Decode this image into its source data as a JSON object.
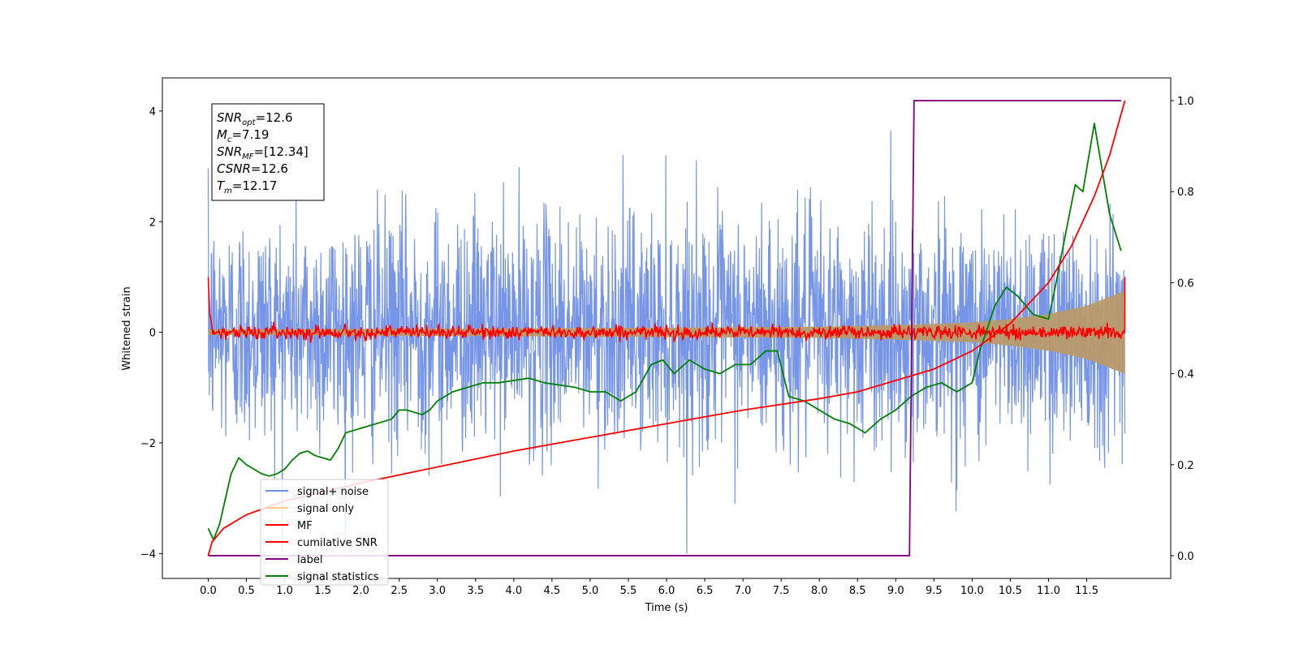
{
  "chart_data": {
    "type": "line",
    "title": "",
    "xlabel": "Time (s)",
    "ylabel": "Whitened strain",
    "xlim": [
      -0.6,
      12.6
    ],
    "ylim": [
      -4.45,
      4.6
    ],
    "y2lim": [
      -0.05,
      1.05
    ],
    "x_ticks": [
      "0.0",
      "0.5",
      "1.0",
      "1.5",
      "2.0",
      "2.5",
      "3.0",
      "3.5",
      "4.0",
      "4.5",
      "5.0",
      "5.5",
      "6.0",
      "6.5",
      "7.0",
      "7.5",
      "8.0",
      "8.5",
      "9.0",
      "9.5",
      "10.0",
      "10.5",
      "11.0",
      "11.5"
    ],
    "y_ticks": [
      "−4",
      "−2",
      "0",
      "2",
      "4"
    ],
    "y2_ticks": [
      "0.0",
      "0.2",
      "0.4",
      "0.6",
      "0.8",
      "1.0"
    ],
    "legend_position": "lower-left",
    "colors": {
      "noise": "#6f8fe6",
      "signal": "#fdbf6f",
      "mf": "#ff0000",
      "csnr": "#ff0000",
      "label": "#800080",
      "stats": "#008000"
    },
    "legend": [
      {
        "key": "noise",
        "label": "signal+ noise"
      },
      {
        "key": "signal",
        "label": "signal only"
      },
      {
        "key": "mf",
        "label": "MF"
      },
      {
        "key": "csnr",
        "label": "cumilative SNR"
      },
      {
        "key": "label",
        "label": "label"
      },
      {
        "key": "stats",
        "label": "signal statistics"
      }
    ],
    "annotation": [
      {
        "var": "SNR",
        "sub": "opt",
        "rest": "=12.6"
      },
      {
        "var": "M",
        "sub": "c",
        "rest": "=7.19"
      },
      {
        "var": "SNR",
        "sub": "MF",
        "rest": "=[12.34]"
      },
      {
        "var": "CSNR",
        "sub": "",
        "rest": "=12.6"
      },
      {
        "var": "T",
        "sub": "m",
        "rest": "=12.17"
      }
    ],
    "series": [
      {
        "name": "signal+ noise",
        "key": "noise",
        "axis": "left",
        "description_range": [
          -4.0,
          4.15
        ],
        "x_range": [
          0.0,
          12.0
        ]
      },
      {
        "name": "signal only",
        "key": "signal",
        "axis": "left",
        "envelope": {
          "x": [
            0.0,
            4.0,
            8.0,
            9.0,
            10.0,
            10.5,
            11.0,
            11.5,
            12.0
          ],
          "amp": [
            0.05,
            0.07,
            0.1,
            0.13,
            0.18,
            0.24,
            0.33,
            0.48,
            0.75
          ]
        }
      },
      {
        "name": "MF",
        "key": "mf",
        "axis": "left",
        "x_range": [
          0.0,
          12.0
        ],
        "start_value": 1.0,
        "end_value": 1.0
      },
      {
        "name": "cumilative SNR",
        "key": "csnr",
        "axis": "right",
        "x": [
          0.0,
          0.05,
          0.2,
          0.5,
          1.0,
          2.0,
          3.0,
          4.0,
          5.0,
          6.0,
          7.0,
          8.0,
          8.5,
          9.0,
          9.5,
          10.0,
          10.5,
          11.0,
          11.3,
          11.6,
          11.8,
          12.0
        ],
        "values": [
          0.0,
          0.03,
          0.06,
          0.09,
          0.12,
          0.16,
          0.195,
          0.23,
          0.26,
          0.29,
          0.32,
          0.345,
          0.36,
          0.385,
          0.41,
          0.45,
          0.51,
          0.6,
          0.68,
          0.79,
          0.88,
          1.0
        ]
      },
      {
        "name": "label",
        "key": "label",
        "axis": "right",
        "x": [
          0.0,
          9.18,
          9.24,
          11.95
        ],
        "values": [
          0.0,
          0.0,
          1.0,
          1.0
        ]
      },
      {
        "name": "signal statistics",
        "key": "stats",
        "axis": "right",
        "x": [
          0.0,
          0.07,
          0.15,
          0.3,
          0.4,
          0.5,
          0.6,
          0.7,
          0.8,
          0.9,
          1.0,
          1.1,
          1.2,
          1.3,
          1.4,
          1.5,
          1.6,
          1.7,
          1.8,
          1.9,
          2.0,
          2.2,
          2.4,
          2.5,
          2.6,
          2.8,
          2.9,
          3.0,
          3.2,
          3.4,
          3.6,
          3.8,
          4.0,
          4.2,
          4.4,
          4.6,
          4.8,
          5.0,
          5.2,
          5.4,
          5.6,
          5.8,
          5.95,
          6.1,
          6.3,
          6.5,
          6.7,
          6.9,
          7.1,
          7.3,
          7.45,
          7.6,
          7.8,
          8.0,
          8.2,
          8.4,
          8.6,
          8.8,
          9.0,
          9.2,
          9.4,
          9.6,
          9.8,
          10.0,
          10.1,
          10.3,
          10.45,
          10.6,
          10.8,
          11.0,
          11.1,
          11.25,
          11.35,
          11.45,
          11.6,
          11.8,
          11.95
        ],
        "values": [
          0.06,
          0.035,
          0.07,
          0.18,
          0.215,
          0.2,
          0.19,
          0.18,
          0.175,
          0.18,
          0.19,
          0.21,
          0.225,
          0.23,
          0.22,
          0.215,
          0.21,
          0.235,
          0.27,
          0.275,
          0.28,
          0.29,
          0.3,
          0.32,
          0.32,
          0.31,
          0.32,
          0.34,
          0.36,
          0.37,
          0.38,
          0.38,
          0.385,
          0.39,
          0.38,
          0.375,
          0.37,
          0.36,
          0.36,
          0.34,
          0.36,
          0.42,
          0.43,
          0.4,
          0.43,
          0.41,
          0.4,
          0.42,
          0.42,
          0.45,
          0.45,
          0.35,
          0.34,
          0.32,
          0.3,
          0.29,
          0.27,
          0.3,
          0.32,
          0.35,
          0.37,
          0.38,
          0.36,
          0.38,
          0.45,
          0.55,
          0.59,
          0.57,
          0.53,
          0.52,
          0.6,
          0.73,
          0.815,
          0.8,
          0.95,
          0.75,
          0.67
        ]
      }
    ]
  }
}
